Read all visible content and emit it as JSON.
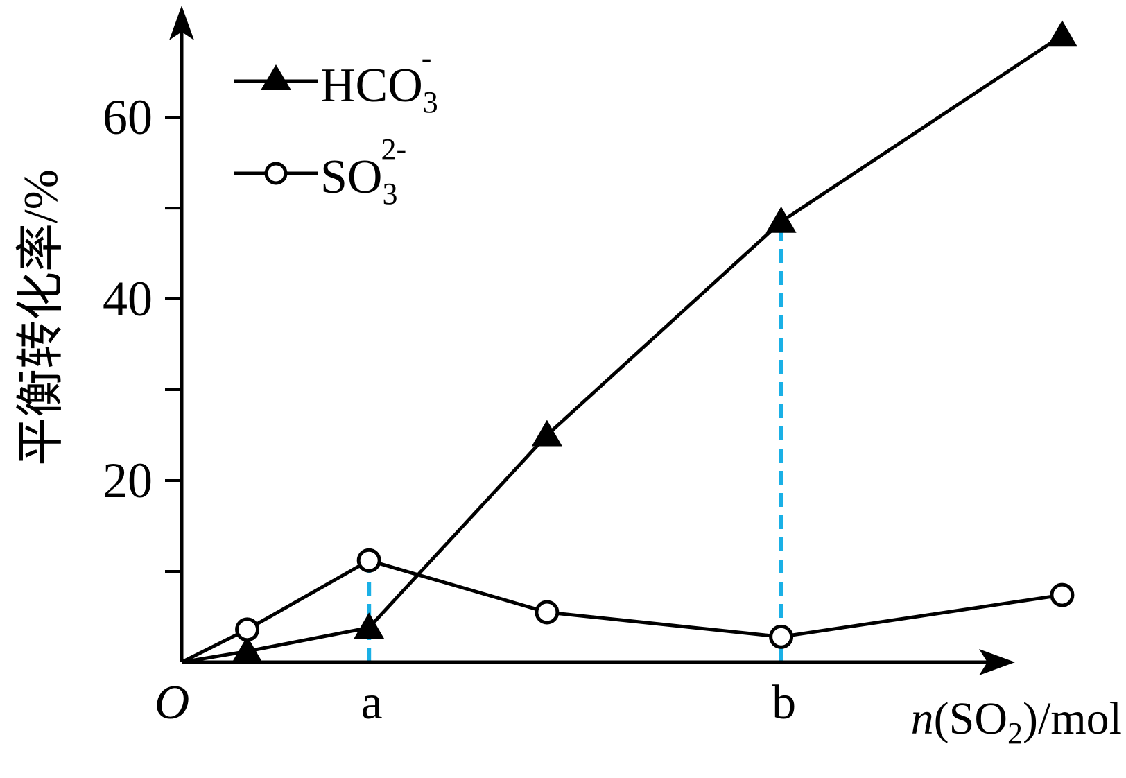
{
  "chart_data": {
    "type": "line",
    "ylabel": "平衡转化率/%",
    "xlabel": {
      "italic": "n",
      "open": "(SO",
      "sub": "2",
      "close": ")/mol"
    },
    "origin_label": "O",
    "y_ticks": [
      {
        "value": 10,
        "label": ""
      },
      {
        "value": 20,
        "label": "20"
      },
      {
        "value": 30,
        "label": ""
      },
      {
        "value": 40,
        "label": "40"
      },
      {
        "value": 50,
        "label": ""
      },
      {
        "value": 60,
        "label": "60"
      }
    ],
    "x_ticks": [
      {
        "value": 1.0,
        "label": "a"
      },
      {
        "value": 3.2,
        "label": "b"
      }
    ],
    "xlim": [
      0,
      5.1
    ],
    "ylim": [
      0,
      71
    ],
    "series": [
      {
        "name": "HCO3-",
        "legend": {
          "base": "HCO",
          "sub": "3",
          "sup": "-"
        },
        "marker": "filled-triangle",
        "x": [
          0,
          0.35,
          1.0,
          1.95,
          3.2,
          4.7
        ],
        "y": [
          0,
          1.2,
          3.8,
          25.0,
          48.5,
          69.0
        ]
      },
      {
        "name": "SO32-",
        "legend": {
          "base": "SO",
          "sub": "3",
          "sup": "2-"
        },
        "marker": "open-circle",
        "x": [
          0,
          0.35,
          1.0,
          1.95,
          3.2,
          4.7
        ],
        "y": [
          0,
          3.6,
          11.2,
          5.5,
          2.8,
          7.4
        ]
      }
    ],
    "reference_lines": [
      {
        "x": 1.0,
        "color": "#1ab0e6",
        "style": "dashed"
      },
      {
        "x": 3.2,
        "color": "#1ab0e6",
        "style": "dashed"
      }
    ],
    "legend_position": "top-left",
    "grid": false
  }
}
